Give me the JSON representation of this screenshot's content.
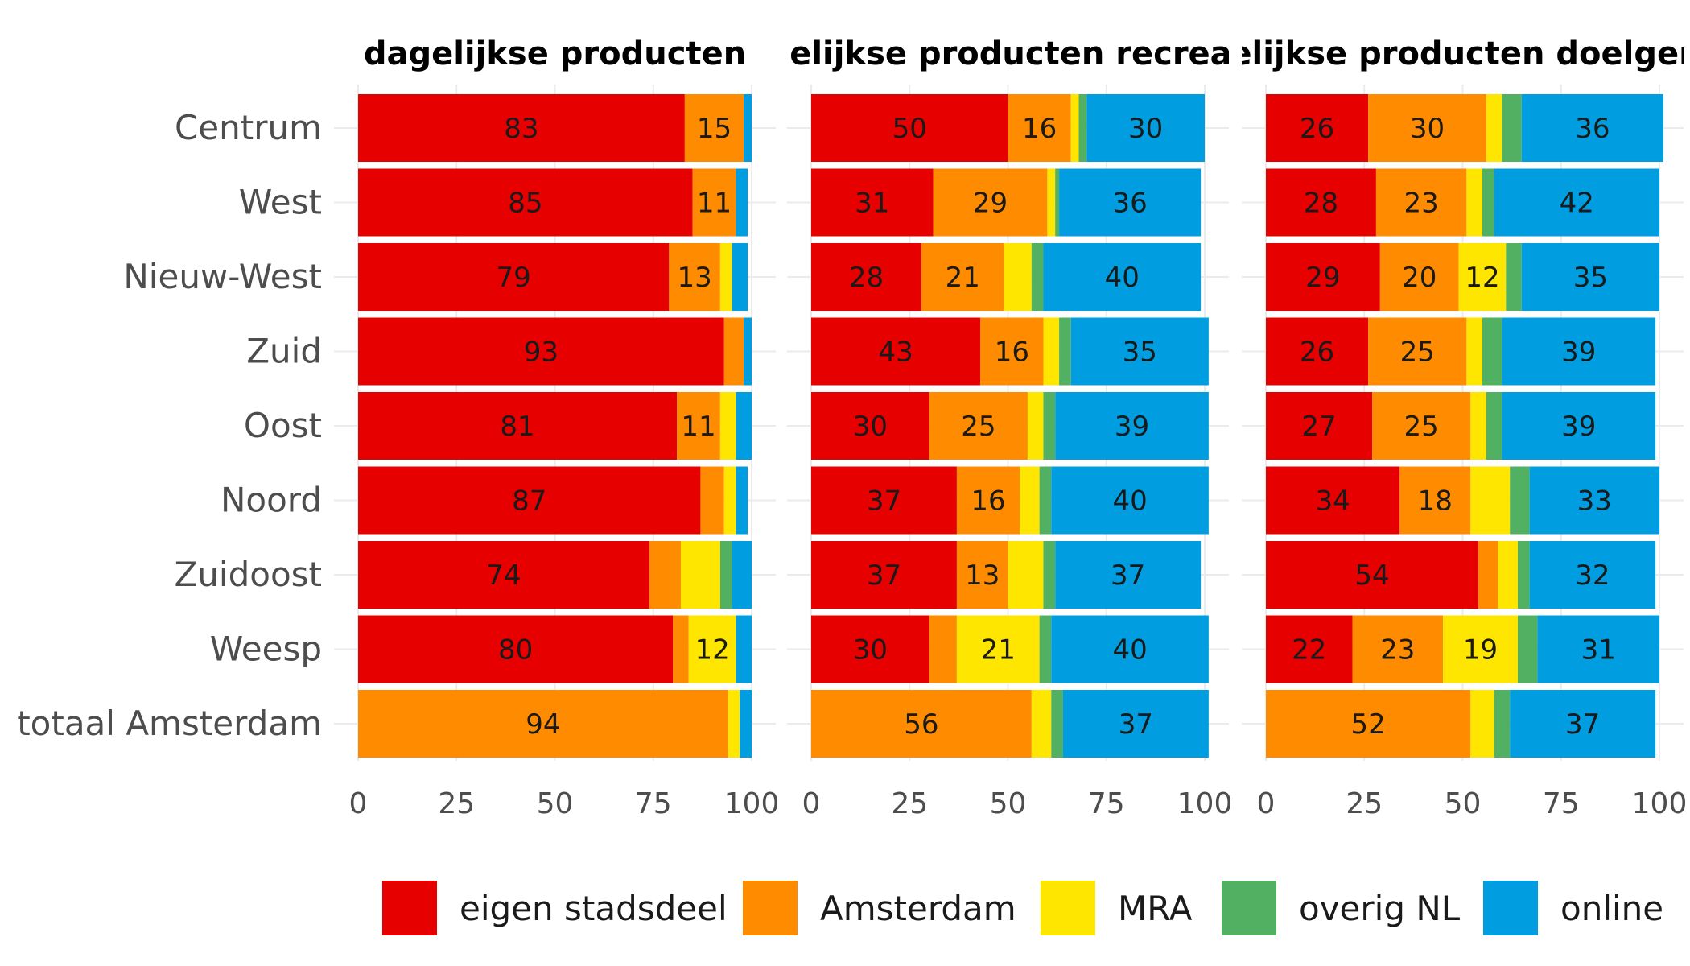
{
  "chart_data": {
    "type": "bar",
    "orientation": "horizontal",
    "stacked": true,
    "categories": [
      "Centrum",
      "West",
      "Nieuw-West",
      "Zuid",
      "Oost",
      "Noord",
      "Zuidoost",
      "Weesp",
      "totaal Amsterdam"
    ],
    "xlim": [
      0,
      100
    ],
    "xticks": [
      "0",
      "25",
      "50",
      "75",
      "100"
    ],
    "grid": true,
    "legend_position": "bottom",
    "colors": {
      "eigen stadsdeel": "#e60000",
      "Amsterdam": "#ff8c00",
      "MRA": "#ffe600",
      "overig NL": "#52b063",
      "online": "#009de0"
    },
    "legend": [
      "eigen stadsdeel",
      "Amsterdam",
      "MRA",
      "overig NL",
      "online"
    ],
    "panels": [
      {
        "title": "dagelijkse producten",
        "series": [
          {
            "name": "eigen stadsdeel",
            "values": [
              83,
              85,
              79,
              93,
              81,
              87,
              74,
              80,
              0
            ]
          },
          {
            "name": "Amsterdam",
            "values": [
              15,
              11,
              13,
              5,
              11,
              6,
              8,
              4,
              94
            ]
          },
          {
            "name": "MRA",
            "values": [
              0,
              0,
              3,
              0,
              4,
              3,
              10,
              12,
              3
            ]
          },
          {
            "name": "overig NL",
            "values": [
              0,
              0,
              0,
              0,
              0,
              0,
              3,
              0,
              0
            ]
          },
          {
            "name": "online",
            "values": [
              2,
              3,
              4,
              2,
              4,
              3,
              5,
              4,
              3
            ]
          }
        ],
        "labels": [
          [
            "83",
            "15",
            "",
            "",
            ""
          ],
          [
            "85",
            "11",
            "",
            "",
            ""
          ],
          [
            "79",
            "13",
            "",
            "",
            ""
          ],
          [
            "93",
            "",
            "",
            "",
            ""
          ],
          [
            "81",
            "11",
            "",
            "",
            ""
          ],
          [
            "87",
            "",
            "",
            "",
            ""
          ],
          [
            "74",
            "",
            "",
            "",
            ""
          ],
          [
            "80",
            "",
            "12",
            "",
            ""
          ],
          [
            "",
            "94",
            "",
            "",
            ""
          ]
        ]
      },
      {
        "title": "dagelijkse producten recreatief",
        "series": [
          {
            "name": "eigen stadsdeel",
            "values": [
              50,
              31,
              28,
              43,
              30,
              37,
              37,
              30,
              0
            ]
          },
          {
            "name": "Amsterdam",
            "values": [
              16,
              29,
              21,
              16,
              25,
              16,
              13,
              7,
              56
            ]
          },
          {
            "name": "MRA",
            "values": [
              2,
              2,
              7,
              4,
              4,
              5,
              9,
              21,
              5
            ]
          },
          {
            "name": "overig NL",
            "values": [
              2,
              1,
              3,
              3,
              3,
              3,
              3,
              3,
              3
            ]
          },
          {
            "name": "online",
            "values": [
              30,
              36,
              40,
              35,
              39,
              40,
              37,
              40,
              37
            ]
          }
        ],
        "labels": [
          [
            "50",
            "16",
            "",
            "",
            "30"
          ],
          [
            "31",
            "29",
            "",
            "",
            "36"
          ],
          [
            "28",
            "21",
            "",
            "",
            "40"
          ],
          [
            "43",
            "16",
            "",
            "",
            "35"
          ],
          [
            "30",
            "25",
            "",
            "",
            "39"
          ],
          [
            "37",
            "16",
            "",
            "",
            "40"
          ],
          [
            "37",
            "13",
            "",
            "",
            "37"
          ],
          [
            "30",
            "",
            "21",
            "",
            "40"
          ],
          [
            "",
            "56",
            "",
            "",
            "37"
          ]
        ]
      },
      {
        "title": "dagelijkse producten doelgericht",
        "series": [
          {
            "name": "eigen stadsdeel",
            "values": [
              26,
              28,
              29,
              26,
              27,
              34,
              54,
              22,
              0
            ]
          },
          {
            "name": "Amsterdam",
            "values": [
              30,
              23,
              20,
              25,
              25,
              18,
              5,
              23,
              52
            ]
          },
          {
            "name": "MRA",
            "values": [
              4,
              4,
              12,
              4,
              4,
              10,
              5,
              19,
              6
            ]
          },
          {
            "name": "overig NL",
            "values": [
              5,
              3,
              4,
              5,
              4,
              5,
              3,
              5,
              4
            ]
          },
          {
            "name": "online",
            "values": [
              36,
              42,
              35,
              39,
              39,
              33,
              32,
              31,
              37
            ]
          }
        ],
        "labels": [
          [
            "26",
            "30",
            "",
            "",
            "36"
          ],
          [
            "28",
            "23",
            "",
            "",
            "42"
          ],
          [
            "29",
            "20",
            "12",
            "",
            "35"
          ],
          [
            "26",
            "25",
            "",
            "",
            "39"
          ],
          [
            "27",
            "25",
            "",
            "",
            "39"
          ],
          [
            "34",
            "18",
            "",
            "",
            "33"
          ],
          [
            "54",
            "",
            "",
            "",
            "32"
          ],
          [
            "22",
            "23",
            "19",
            "",
            "31"
          ],
          [
            "",
            "52",
            "",
            "",
            "37"
          ]
        ]
      }
    ]
  }
}
